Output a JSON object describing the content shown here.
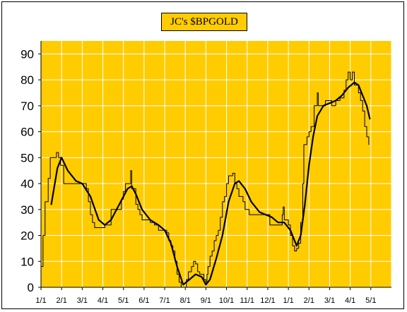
{
  "chart_data": {
    "type": "line",
    "title": "JC's $BPGOLD",
    "ylim": [
      0,
      95
    ],
    "yticks": [
      0,
      10,
      20,
      30,
      40,
      50,
      60,
      70,
      80,
      90
    ],
    "x_tick_labels": [
      "1/1",
      "2/1",
      "3/1",
      "4/1",
      "5/1",
      "6/1",
      "7/1",
      "8/1",
      "9/1",
      "10/1",
      "11/1",
      "12/1",
      "1/1",
      "2/1",
      "3/1",
      "4/1",
      "5/1"
    ],
    "x_range_months": [
      0,
      17
    ],
    "grid": true,
    "plot_background": "#FFCC00",
    "grid_color": "#FFFFFF",
    "series": [
      {
        "style": "thin-stepped",
        "color": "#000000",
        "points": [
          [
            0.0,
            8
          ],
          [
            0.1,
            20
          ],
          [
            0.2,
            33
          ],
          [
            0.35,
            42
          ],
          [
            0.45,
            50
          ],
          [
            0.6,
            50
          ],
          [
            0.75,
            52
          ],
          [
            0.85,
            50
          ],
          [
            0.95,
            47
          ],
          [
            1.1,
            40
          ],
          [
            1.3,
            40
          ],
          [
            1.5,
            40
          ],
          [
            1.7,
            40
          ],
          [
            1.9,
            40
          ],
          [
            2.1,
            40
          ],
          [
            2.2,
            38
          ],
          [
            2.3,
            33
          ],
          [
            2.4,
            28
          ],
          [
            2.5,
            25
          ],
          [
            2.6,
            23
          ],
          [
            2.8,
            23
          ],
          [
            3.0,
            23
          ],
          [
            3.1,
            24
          ],
          [
            3.3,
            24
          ],
          [
            3.4,
            30
          ],
          [
            3.6,
            30
          ],
          [
            3.8,
            30
          ],
          [
            3.9,
            34
          ],
          [
            4.0,
            37
          ],
          [
            4.1,
            40
          ],
          [
            4.2,
            40
          ],
          [
            4.3,
            40
          ],
          [
            4.35,
            45
          ],
          [
            4.4,
            38
          ],
          [
            4.5,
            38
          ],
          [
            4.6,
            32
          ],
          [
            4.7,
            30
          ],
          [
            4.8,
            28
          ],
          [
            4.9,
            26
          ],
          [
            5.1,
            26
          ],
          [
            5.3,
            25
          ],
          [
            5.5,
            24
          ],
          [
            5.7,
            22
          ],
          [
            6.0,
            22
          ],
          [
            6.1,
            21
          ],
          [
            6.2,
            18
          ],
          [
            6.3,
            16
          ],
          [
            6.4,
            14
          ],
          [
            6.5,
            10
          ],
          [
            6.6,
            5
          ],
          [
            6.7,
            2
          ],
          [
            6.8,
            0
          ],
          [
            6.95,
            0
          ],
          [
            7.05,
            3
          ],
          [
            7.15,
            6
          ],
          [
            7.3,
            8
          ],
          [
            7.4,
            10
          ],
          [
            7.5,
            9
          ],
          [
            7.6,
            6
          ],
          [
            7.7,
            5
          ],
          [
            7.8,
            5
          ],
          [
            7.9,
            3
          ],
          [
            8.0,
            2
          ],
          [
            8.05,
            5
          ],
          [
            8.1,
            8
          ],
          [
            8.2,
            12
          ],
          [
            8.3,
            14
          ],
          [
            8.4,
            18
          ],
          [
            8.5,
            20
          ],
          [
            8.6,
            22
          ],
          [
            8.7,
            27
          ],
          [
            8.8,
            33
          ],
          [
            8.9,
            35
          ],
          [
            9.0,
            40
          ],
          [
            9.1,
            43
          ],
          [
            9.3,
            44
          ],
          [
            9.4,
            40
          ],
          [
            9.5,
            38
          ],
          [
            9.6,
            35
          ],
          [
            9.8,
            33
          ],
          [
            9.9,
            30
          ],
          [
            10.1,
            28
          ],
          [
            10.5,
            28
          ],
          [
            10.9,
            28
          ],
          [
            11.1,
            24
          ],
          [
            11.5,
            24
          ],
          [
            11.7,
            28
          ],
          [
            11.75,
            31
          ],
          [
            11.8,
            26
          ],
          [
            12.0,
            24
          ],
          [
            12.1,
            20
          ],
          [
            12.2,
            16
          ],
          [
            12.3,
            14
          ],
          [
            12.4,
            15
          ],
          [
            12.5,
            17
          ],
          [
            12.6,
            25
          ],
          [
            12.7,
            40
          ],
          [
            12.75,
            55
          ],
          [
            12.9,
            58
          ],
          [
            13.0,
            60
          ],
          [
            13.1,
            62
          ],
          [
            13.25,
            70
          ],
          [
            13.4,
            75
          ],
          [
            13.45,
            70
          ],
          [
            13.6,
            70
          ],
          [
            13.8,
            72
          ],
          [
            14.1,
            70
          ],
          [
            14.3,
            72
          ],
          [
            14.5,
            73
          ],
          [
            14.7,
            76
          ],
          [
            14.8,
            80
          ],
          [
            14.9,
            83
          ],
          [
            15.0,
            80
          ],
          [
            15.1,
            83
          ],
          [
            15.2,
            78
          ],
          [
            15.3,
            78
          ],
          [
            15.4,
            75
          ],
          [
            15.5,
            72
          ],
          [
            15.6,
            68
          ],
          [
            15.7,
            62
          ],
          [
            15.8,
            58
          ],
          [
            15.9,
            55
          ]
        ]
      },
      {
        "style": "thick-smoothed",
        "color": "#000000",
        "points": [
          [
            0.5,
            32
          ],
          [
            0.8,
            46
          ],
          [
            1.0,
            50
          ],
          [
            1.3,
            45
          ],
          [
            1.7,
            41
          ],
          [
            2.0,
            40
          ],
          [
            2.4,
            35
          ],
          [
            2.8,
            26
          ],
          [
            3.1,
            24
          ],
          [
            3.4,
            26
          ],
          [
            3.8,
            32
          ],
          [
            4.2,
            38
          ],
          [
            4.4,
            39
          ],
          [
            4.6,
            36
          ],
          [
            4.9,
            30
          ],
          [
            5.3,
            26
          ],
          [
            5.7,
            24
          ],
          [
            6.0,
            22
          ],
          [
            6.3,
            17
          ],
          [
            6.6,
            8
          ],
          [
            6.9,
            1
          ],
          [
            7.2,
            3
          ],
          [
            7.5,
            5
          ],
          [
            7.8,
            4
          ],
          [
            8.0,
            1
          ],
          [
            8.2,
            3
          ],
          [
            8.5,
            11
          ],
          [
            8.8,
            20
          ],
          [
            9.1,
            33
          ],
          [
            9.4,
            40
          ],
          [
            9.6,
            41
          ],
          [
            9.9,
            38
          ],
          [
            10.2,
            33
          ],
          [
            10.6,
            29
          ],
          [
            10.9,
            28
          ],
          [
            11.2,
            27
          ],
          [
            11.5,
            25
          ],
          [
            11.8,
            25
          ],
          [
            12.1,
            22
          ],
          [
            12.4,
            16
          ],
          [
            12.6,
            20
          ],
          [
            12.8,
            32
          ],
          [
            13.0,
            47
          ],
          [
            13.2,
            58
          ],
          [
            13.4,
            66
          ],
          [
            13.7,
            70
          ],
          [
            14.0,
            71
          ],
          [
            14.3,
            72
          ],
          [
            14.6,
            74
          ],
          [
            14.9,
            77
          ],
          [
            15.2,
            79
          ],
          [
            15.4,
            78
          ],
          [
            15.6,
            74
          ],
          [
            15.8,
            70
          ],
          [
            15.95,
            65
          ]
        ]
      }
    ]
  }
}
